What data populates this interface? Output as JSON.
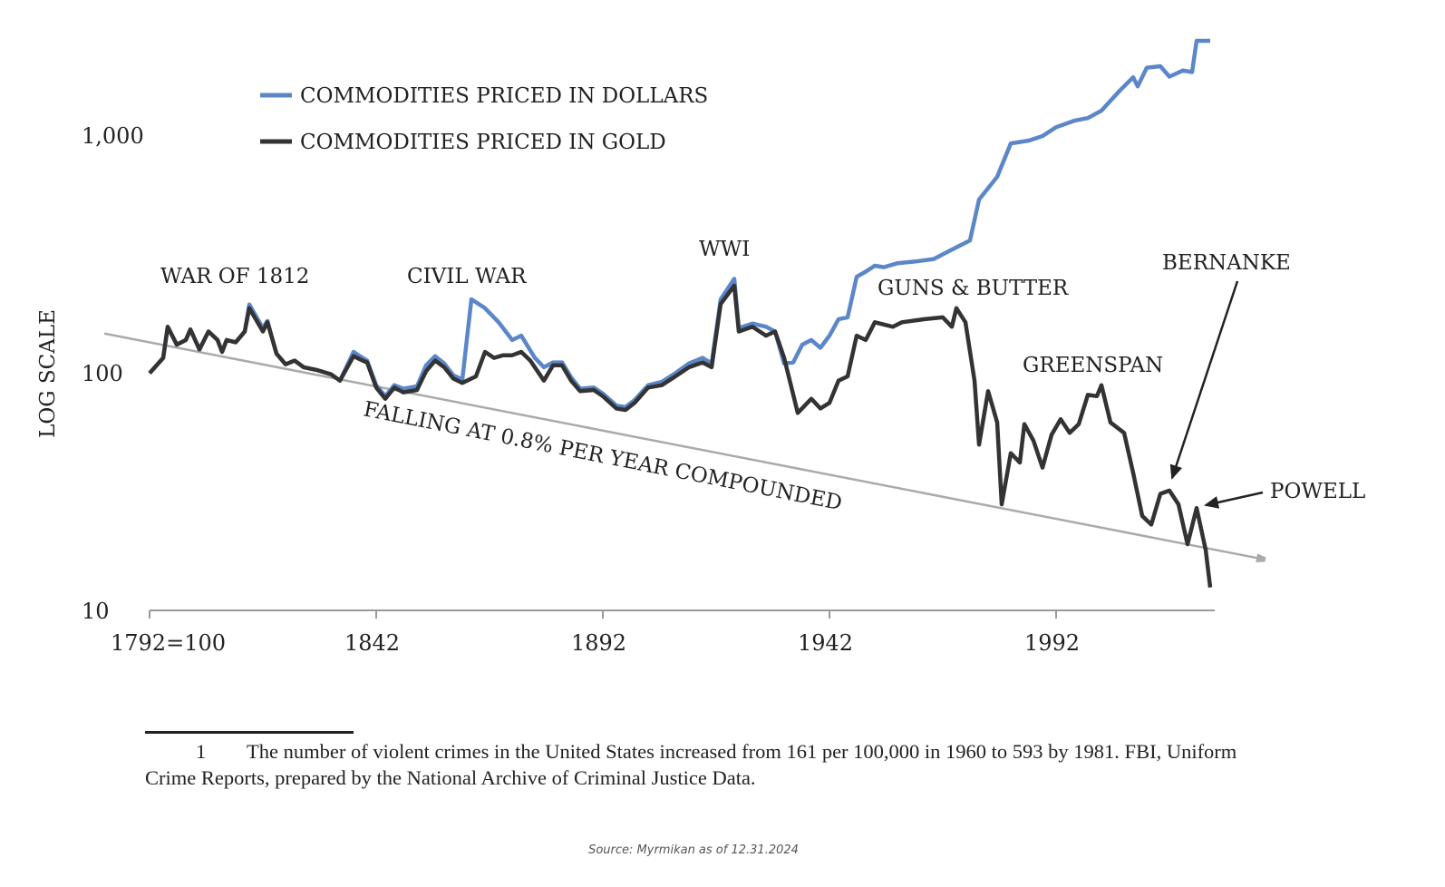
{
  "chart_data": {
    "type": "line",
    "title": "",
    "xlabel": "",
    "ylabel": "LOG SCALE",
    "yscale": "log",
    "ylim": [
      10,
      3000
    ],
    "xlim": [
      1792,
      2026
    ],
    "x_tick_labels": [
      "1792=100",
      "1842",
      "1892",
      "1942",
      "1992"
    ],
    "x_ticks": [
      1792,
      1842,
      1892,
      1942,
      1992
    ],
    "y_tick_labels": [
      "1,000",
      "100",
      "10"
    ],
    "y_ticks": [
      1000,
      100,
      10
    ],
    "legend_position": "top-left",
    "colors": {
      "dollars": "#5b87c9",
      "gold": "#333333",
      "trend": "#aaaaaa"
    },
    "series": [
      {
        "name": "COMMODITIES PRICED IN DOLLARS",
        "x": [
          1792,
          1795,
          1796,
          1798,
          1800,
          1801,
          1803,
          1805,
          1807,
          1808,
          1809,
          1811,
          1813,
          1814,
          1817,
          1818,
          1820,
          1822,
          1824,
          1826,
          1829,
          1832,
          1834,
          1837,
          1839,
          1840,
          1842,
          1844,
          1846,
          1848,
          1851,
          1853,
          1855,
          1857,
          1859,
          1861,
          1863,
          1866,
          1869,
          1872,
          1874,
          1877,
          1879,
          1881,
          1883,
          1885,
          1887,
          1890,
          1892,
          1895,
          1897,
          1899,
          1902,
          1905,
          1908,
          1911,
          1914,
          1916,
          1918,
          1921,
          1922,
          1925,
          1928,
          1930,
          1932,
          1934,
          1936,
          1938,
          1940,
          1942,
          1944,
          1946,
          1948,
          1950,
          1952,
          1954,
          1957,
          1961,
          1965,
          1969,
          1973,
          1975,
          1979,
          1982,
          1986,
          1989,
          1992,
          1996,
          1999,
          2002,
          2006,
          2009,
          2010,
          2012,
          2015,
          2017,
          2020,
          2022,
          2023,
          2026
        ],
        "values": [
          100,
          116,
          157,
          132,
          138,
          153,
          126,
          150,
          138,
          123,
          138,
          135,
          150,
          195,
          155,
          166,
          121,
          109,
          113,
          106,
          103,
          99,
          93,
          123,
          116,
          113,
          89,
          80,
          89,
          86,
          88,
          108,
          118,
          110,
          98,
          94,
          205,
          188,
          164,
          138,
          144,
          116,
          106,
          111,
          111,
          96,
          86,
          87,
          82,
          73,
          72,
          77,
          89,
          92,
          100,
          110,
          116,
          110,
          205,
          250,
          155,
          162,
          157,
          150,
          110,
          111,
          132,
          138,
          128,
          144,
          169,
          172,
          255,
          268,
          284,
          280,
          291,
          296,
          303,
          332,
          363,
          540,
          673,
          931,
          957,
          1000,
          1090,
          1160,
          1190,
          1280,
          1550,
          1770,
          1620,
          1940,
          1970,
          1780,
          1890,
          1860,
          2520,
          2520
        ]
      },
      {
        "name": "COMMODITIES PRICED IN GOLD",
        "x": [
          1792,
          1795,
          1796,
          1798,
          1800,
          1801,
          1803,
          1805,
          1807,
          1808,
          1809,
          1811,
          1813,
          1814,
          1817,
          1818,
          1820,
          1822,
          1824,
          1826,
          1829,
          1832,
          1834,
          1837,
          1839,
          1840,
          1842,
          1844,
          1846,
          1848,
          1851,
          1853,
          1855,
          1857,
          1859,
          1861,
          1864,
          1866,
          1868,
          1870,
          1872,
          1874,
          1876,
          1879,
          1881,
          1883,
          1885,
          1887,
          1890,
          1892,
          1895,
          1897,
          1899,
          1902,
          1905,
          1908,
          1911,
          1914,
          1916,
          1918,
          1921,
          1922,
          1925,
          1928,
          1930,
          1932,
          1935,
          1938,
          1940,
          1942,
          1944,
          1946,
          1948,
          1950,
          1952,
          1956,
          1958,
          1963,
          1967,
          1969,
          1970,
          1972,
          1974,
          1975,
          1977,
          1979,
          1980,
          1982,
          1984,
          1985,
          1987,
          1989,
          1991,
          1993,
          1995,
          1997,
          1999,
          2001,
          2002,
          2004,
          2007,
          2009,
          2011,
          2013,
          2015,
          2017,
          2019,
          2021,
          2023,
          2025,
          2026
        ],
        "values": [
          100,
          116,
          157,
          132,
          138,
          153,
          126,
          150,
          138,
          123,
          138,
          135,
          150,
          188,
          150,
          164,
          121,
          109,
          113,
          106,
          103,
          99,
          93,
          118,
          113,
          111,
          87,
          78,
          87,
          83,
          85,
          102,
          113,
          106,
          95,
          91,
          97,
          123,
          116,
          119,
          119,
          123,
          113,
          93,
          108,
          108,
          93,
          84,
          85,
          80,
          71,
          70,
          75,
          87,
          89,
          97,
          106,
          111,
          106,
          196,
          234,
          150,
          157,
          144,
          150,
          116,
          68,
          78,
          71,
          75,
          93,
          97,
          144,
          138,
          164,
          157,
          164,
          169,
          172,
          157,
          188,
          164,
          93,
          50,
          84,
          62,
          28,
          46,
          42,
          61,
          52,
          40,
          55,
          64,
          56,
          61,
          81,
          80,
          89,
          62,
          56,
          38,
          25,
          23,
          31,
          32,
          28,
          19,
          27,
          18,
          12.5
        ]
      }
    ],
    "trend": {
      "label": "FALLING AT 0.8% PER YEAR COMPOUNDED",
      "start": [
        1782,
        147
      ],
      "end": [
        2038,
        16.4
      ]
    },
    "annotations": [
      "WAR OF 1812",
      "CIVIL WAR",
      "WWI",
      "GUNS & BUTTER",
      "GREENSPAN",
      "BERNANKE",
      "POWELL"
    ]
  },
  "footnote": {
    "number": "1",
    "text": "The number of violent crimes in the United States increased from 161 per 100,000 in 1960 to 593 by 1981. FBI, Uniform Crime Reports, prepared by the National Archive of Criminal Justice Data."
  },
  "source": "Source: Myrmikan as of 12.31.2024"
}
